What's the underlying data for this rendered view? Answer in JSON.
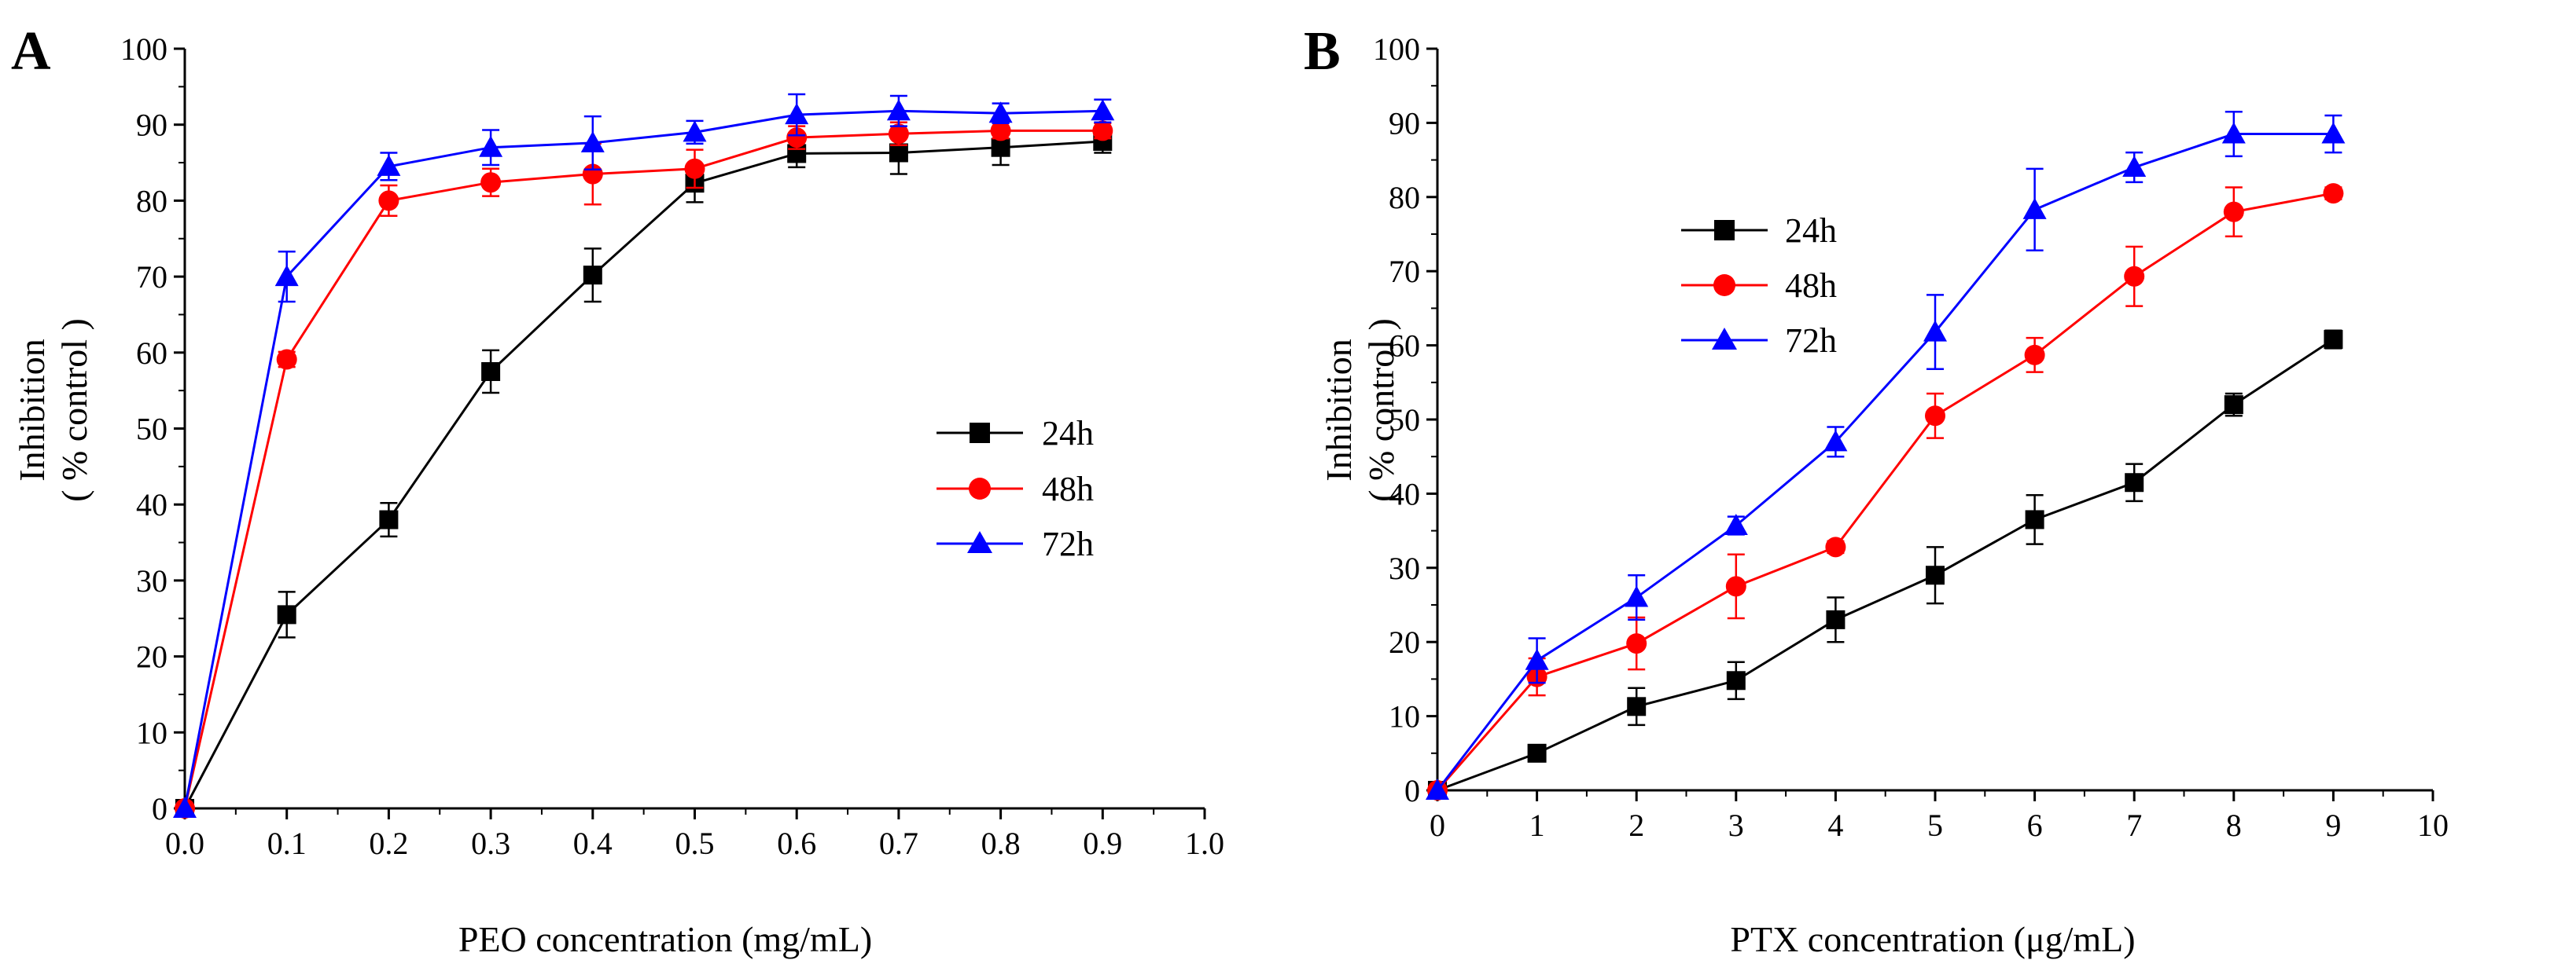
{
  "chart_data": [
    {
      "type": "line",
      "panel_label": "A",
      "xlabel": "PEO concentration (mg/mL)",
      "ylabel": "Inhibition",
      "ylabel2": "( % control )",
      "xlim": [
        0,
        1.0
      ],
      "ylim": [
        0,
        100
      ],
      "x_ticks": [
        0.0,
        0.1,
        0.2,
        0.3,
        0.4,
        0.5,
        0.6,
        0.7,
        0.8,
        0.9,
        1.0
      ],
      "x_tick_labels": [
        "0.0",
        "0.1",
        "0.2",
        "0.3",
        "0.4",
        "0.5",
        "0.6",
        "0.7",
        "0.8",
        "0.9",
        "1.0"
      ],
      "y_ticks": [
        0,
        10,
        20,
        30,
        40,
        50,
        60,
        70,
        80,
        90,
        100
      ],
      "y_tick_labels": [
        "0",
        "10",
        "20",
        "30",
        "40",
        "50",
        "60",
        "70",
        "80",
        "90",
        "100"
      ],
      "grid": false,
      "legend_position": "center-right",
      "x": [
        0.0,
        0.1,
        0.2,
        0.3,
        0.4,
        0.5,
        0.6,
        0.7,
        0.8,
        0.9
      ],
      "series": [
        {
          "name": "24h",
          "color": "#000000",
          "marker": "square",
          "values": [
            0,
            25.5,
            38,
            57.5,
            70.2,
            82.3,
            86.2,
            86.3,
            87,
            87.8
          ],
          "errors": [
            0,
            3,
            2.2,
            2.8,
            3.5,
            2.5,
            1.8,
            2.8,
            2.3,
            1.5
          ]
        },
        {
          "name": "48h",
          "color": "#ff0000",
          "marker": "circle",
          "values": [
            0,
            59.1,
            80,
            82.4,
            83.5,
            84.2,
            88.3,
            88.8,
            89.2,
            89.2
          ],
          "errors": [
            0,
            1,
            2,
            1.8,
            4,
            2.5,
            1.5,
            1.5,
            1,
            1
          ]
        },
        {
          "name": "72h",
          "color": "#0000ff",
          "marker": "triangle",
          "values": [
            0,
            70,
            84.5,
            87,
            87.6,
            89,
            91.3,
            91.8,
            91.5,
            91.8
          ],
          "errors": [
            0,
            3.3,
            1.8,
            2.3,
            3.5,
            1.5,
            2.7,
            2,
            1.3,
            1.5
          ]
        }
      ]
    },
    {
      "type": "line",
      "panel_label": "B",
      "xlabel": "PTX concentration (μg/mL)",
      "ylabel": "Inhibition",
      "ylabel2": "( % control )",
      "xlim": [
        0,
        10
      ],
      "ylim": [
        0,
        100
      ],
      "x_ticks": [
        0,
        1,
        2,
        3,
        4,
        5,
        6,
        7,
        8,
        9,
        10
      ],
      "x_tick_labels": [
        "0",
        "1",
        "2",
        "3",
        "4",
        "5",
        "6",
        "7",
        "8",
        "9",
        "10"
      ],
      "y_ticks": [
        0,
        10,
        20,
        30,
        40,
        50,
        60,
        70,
        80,
        90,
        100
      ],
      "y_tick_labels": [
        "0",
        "10",
        "20",
        "30",
        "40",
        "50",
        "60",
        "70",
        "80",
        "90",
        "100"
      ],
      "grid": false,
      "legend_position": "upper-left",
      "x": [
        0,
        1,
        2,
        3,
        4,
        5,
        6,
        7,
        8,
        9
      ],
      "series": [
        {
          "name": "24h",
          "color": "#000000",
          "marker": "square",
          "values": [
            0,
            5,
            11.3,
            14.8,
            23,
            29,
            36.5,
            41.5,
            52,
            60.8
          ],
          "errors": [
            0,
            0.7,
            2.5,
            2.5,
            3,
            3.8,
            3.3,
            2.5,
            1.5,
            1.2
          ]
        },
        {
          "name": "48h",
          "color": "#ff0000",
          "marker": "circle",
          "values": [
            0,
            15.3,
            19.8,
            27.5,
            32.8,
            50.5,
            58.7,
            69.3,
            78,
            80.5
          ],
          "errors": [
            0,
            2.5,
            3.5,
            4.3,
            0.8,
            3,
            2.3,
            4,
            3.3,
            0.8
          ]
        },
        {
          "name": "72h",
          "color": "#0000ff",
          "marker": "triangle",
          "values": [
            0,
            17.5,
            26,
            35.7,
            47,
            61.8,
            78.3,
            84,
            88.5,
            88.5
          ],
          "errors": [
            0,
            3,
            3,
            1.2,
            2,
            5,
            5.5,
            2,
            3,
            2.5
          ]
        }
      ]
    }
  ]
}
